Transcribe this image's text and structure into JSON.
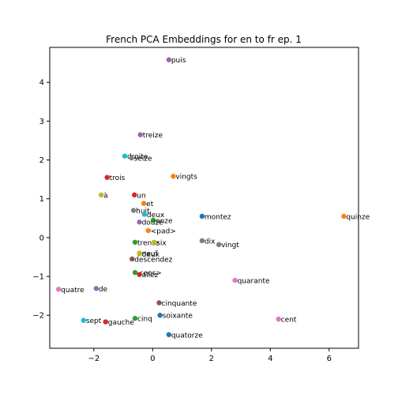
{
  "chart_data": {
    "type": "scatter",
    "title": "French PCA Embeddings for en to fr ep. 1",
    "xlabel": "",
    "ylabel": "",
    "xlim": [
      -3.5,
      7.0
    ],
    "ylim": [
      -2.85,
      4.9
    ],
    "xticks": [
      -2,
      0,
      2,
      4,
      6
    ],
    "yticks": [
      -2,
      -1,
      0,
      1,
      2,
      3,
      4
    ],
    "xtick_labels": [
      "−2",
      "0",
      "2",
      "4",
      "6"
    ],
    "ytick_labels": [
      "−2",
      "−1",
      "0",
      "1",
      "2",
      "3",
      "4"
    ],
    "grid": false,
    "legend": "none",
    "points": [
      {
        "label": "puis",
        "x": 0.55,
        "y": 4.58,
        "color": "#9467bd"
      },
      {
        "label": "treize",
        "x": -0.42,
        "y": 2.65,
        "color": "#9467bd"
      },
      {
        "label": "droite",
        "x": -0.95,
        "y": 2.1,
        "color": "#17becf"
      },
      {
        "label": "seize",
        "x": -0.72,
        "y": 2.05,
        "color": "#7f7f7f"
      },
      {
        "label": "trois",
        "x": -1.55,
        "y": 1.55,
        "color": "#d62728"
      },
      {
        "label": "vingts",
        "x": 0.7,
        "y": 1.58,
        "color": "#ff7f0e"
      },
      {
        "label": "à",
        "x": -1.75,
        "y": 1.1,
        "color": "#bcbd22"
      },
      {
        "label": "un",
        "x": -0.62,
        "y": 1.1,
        "color": "#d62728"
      },
      {
        "label": "et",
        "x": -0.3,
        "y": 0.88,
        "color": "#ff7f0e"
      },
      {
        "label": "huit",
        "x": -0.65,
        "y": 0.7,
        "color": "#7f7f7f"
      },
      {
        "label": "deux",
        "x": -0.28,
        "y": 0.6,
        "color": "#17becf"
      },
      {
        "label": "onze",
        "x": 0.02,
        "y": 0.45,
        "color": "#2ca02c"
      },
      {
        "label": "douze",
        "x": -0.45,
        "y": 0.4,
        "color": "#9467bd"
      },
      {
        "label": "montez",
        "x": 1.68,
        "y": 0.55,
        "color": "#1f77b4"
      },
      {
        "label": "quinze",
        "x": 6.5,
        "y": 0.55,
        "color": "#ff7f0e"
      },
      {
        "label": "<pad>",
        "x": -0.15,
        "y": 0.18,
        "color": "#ff7f0e"
      },
      {
        "label": "dix",
        "x": 1.68,
        "y": -0.08,
        "color": "#7f7f7f"
      },
      {
        "label": "vingt",
        "x": 2.25,
        "y": -0.18,
        "color": "#7f7f7f"
      },
      {
        "label": "trente",
        "x": -0.6,
        "y": -0.12,
        "color": "#2ca02c"
      },
      {
        "label": "six",
        "x": 0.05,
        "y": -0.12,
        "color": "#bcbd22"
      },
      {
        "label": "neuf",
        "x": -0.45,
        "y": -0.4,
        "color": "#bcbd22"
      },
      {
        "label": "deux",
        "x": -0.45,
        "y": -0.42,
        "color": "#bcbd22"
      },
      {
        "label": "descendez",
        "x": -0.7,
        "y": -0.55,
        "color": "#8c564b"
      },
      {
        "label": "<eos>",
        "x": -0.6,
        "y": -0.9,
        "color": "#2ca02c"
      },
      {
        "label": "allez",
        "x": -0.45,
        "y": -0.95,
        "color": "#d62728"
      },
      {
        "label": "quarante",
        "x": 2.8,
        "y": -1.1,
        "color": "#e377c2"
      },
      {
        "label": "quatre",
        "x": -3.2,
        "y": -1.33,
        "color": "#e377c2"
      },
      {
        "label": "de",
        "x": -1.92,
        "y": -1.31,
        "color": "#9467bd"
      },
      {
        "label": "cinquante",
        "x": 0.22,
        "y": -1.68,
        "color": "#8c564b"
      },
      {
        "label": "soixante",
        "x": 0.25,
        "y": -2.0,
        "color": "#1f77b4"
      },
      {
        "label": "cinq",
        "x": -0.6,
        "y": -2.08,
        "color": "#2ca02c"
      },
      {
        "label": "sept",
        "x": -2.35,
        "y": -2.13,
        "color": "#17becf"
      },
      {
        "label": "gauche",
        "x": -1.6,
        "y": -2.17,
        "color": "#d62728"
      },
      {
        "label": "cent",
        "x": 4.28,
        "y": -2.1,
        "color": "#e377c2"
      },
      {
        "label": "quatorze",
        "x": 0.55,
        "y": -2.5,
        "color": "#1f77b4"
      }
    ]
  }
}
